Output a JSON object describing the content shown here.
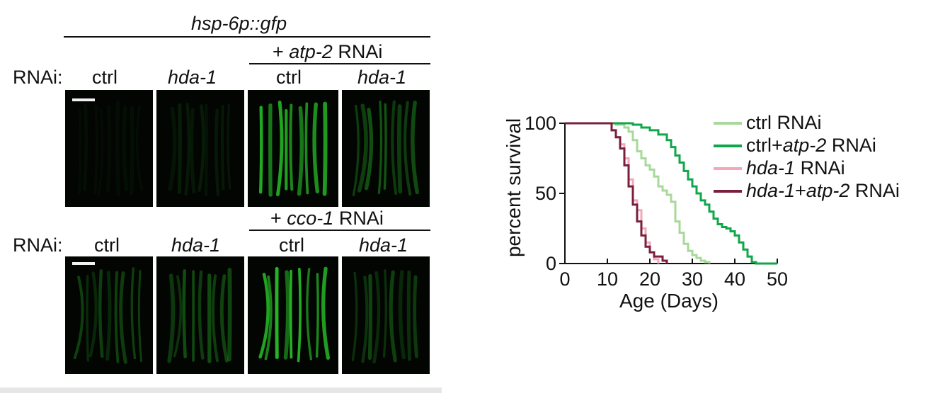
{
  "panel_left": {
    "header_title": "hsp-6p::gfp",
    "rnai_row_label": "RNAi:",
    "group_top": {
      "prefix": "+ ",
      "gene": "atp-2",
      "suffix": " RNAi"
    },
    "group_bottom": {
      "prefix": "+ ",
      "gene": "cco-1",
      "suffix": " RNAi"
    },
    "col_labels_top": [
      "ctrl",
      "hda-1",
      "ctrl",
      "hda-1"
    ],
    "col_labels_bottom": [
      "ctrl",
      "hda-1",
      "ctrl",
      "hda-1"
    ],
    "fluorescence_intensity_top": [
      0.05,
      0.12,
      0.95,
      0.45
    ],
    "fluorescence_intensity_bottom": [
      0.3,
      0.35,
      0.85,
      0.3
    ],
    "gfp_color": "#2bd12b"
  },
  "chart_data": {
    "type": "line",
    "xlabel": "Age (Days)",
    "ylabel": "percent survival",
    "xlim": [
      0,
      50
    ],
    "ylim": [
      0,
      100
    ],
    "xticks": [
      "0",
      "10",
      "20",
      "30",
      "40",
      "50"
    ],
    "yticks": [
      "0",
      "50",
      "100"
    ],
    "legend_position": "right",
    "series": [
      {
        "name": "ctrl RNAi",
        "name_parts": [
          [
            "ctrl RNAi",
            false
          ]
        ],
        "color": "#a8d89a",
        "x": [
          0,
          10,
          12,
          14,
          15,
          16,
          17,
          18,
          19,
          20,
          21,
          22,
          23,
          24,
          25,
          26,
          27,
          28,
          29,
          30,
          31,
          32,
          33,
          34
        ],
        "y": [
          100,
          100,
          99,
          97,
          94,
          88,
          80,
          75,
          70,
          67,
          62,
          55,
          52,
          49,
          44,
          30,
          22,
          14,
          9,
          6,
          4,
          2,
          1,
          0
        ]
      },
      {
        "name": "ctrl+atp-2 RNAi",
        "name_parts": [
          [
            "ctrl+",
            false
          ],
          [
            "atp-2",
            true
          ],
          [
            " RNAi",
            false
          ]
        ],
        "color": "#10a64a",
        "x": [
          0,
          14,
          16,
          18,
          20,
          22,
          24,
          25,
          26,
          27,
          28,
          29,
          30,
          31,
          32,
          33,
          34,
          35,
          36,
          37,
          38,
          39,
          40,
          41,
          42,
          43,
          44,
          45,
          50
        ],
        "y": [
          100,
          100,
          99,
          97,
          95,
          92,
          88,
          83,
          77,
          72,
          66,
          60,
          55,
          50,
          45,
          42,
          37,
          32,
          28,
          26,
          25,
          23,
          20,
          15,
          10,
          5,
          1,
          0,
          0
        ]
      },
      {
        "name": "hda-1 RNAi",
        "name_parts": [
          [
            "hda-1",
            true
          ],
          [
            " RNAi",
            false
          ]
        ],
        "color": "#f2a8b8",
        "x": [
          0,
          10,
          11,
          12,
          13,
          14,
          15,
          16,
          17,
          18,
          19,
          20,
          21,
          22
        ],
        "y": [
          100,
          100,
          95,
          90,
          85,
          75,
          60,
          45,
          38,
          25,
          15,
          8,
          3,
          0
        ]
      },
      {
        "name": "hda-1+atp-2 RNAi",
        "name_parts": [
          [
            "hda-1",
            true
          ],
          [
            "+",
            false
          ],
          [
            "atp-2",
            true
          ],
          [
            " RNAi",
            false
          ]
        ],
        "color": "#7a1f3d",
        "x": [
          0,
          10,
          11,
          12,
          13,
          14,
          15,
          16,
          17,
          18,
          19,
          20,
          21,
          22,
          23,
          24
        ],
        "y": [
          100,
          100,
          95,
          90,
          82,
          70,
          55,
          42,
          30,
          20,
          12,
          8,
          5,
          5,
          2,
          0
        ]
      }
    ]
  }
}
